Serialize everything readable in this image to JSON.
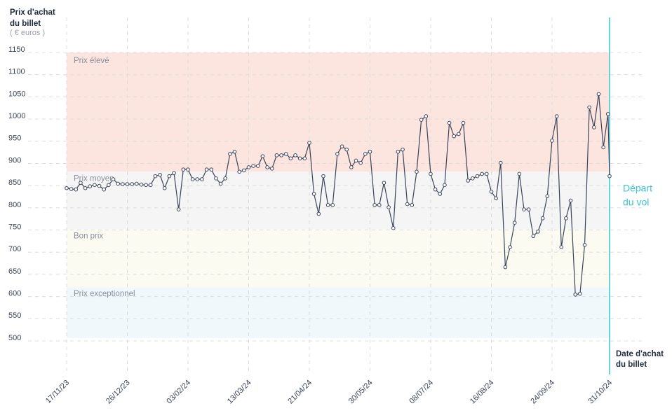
{
  "chart_data": {
    "type": "line",
    "y_label": [
      "Prix d'achat",
      "du billet"
    ],
    "y_unit": "( € euros )",
    "x_label": [
      "Date d'achat",
      "du billet"
    ],
    "ylim": [
      500,
      1150
    ],
    "yticks": [
      500,
      550,
      600,
      650,
      700,
      750,
      800,
      850,
      900,
      950,
      1000,
      1050,
      1100,
      1150
    ],
    "xlim": [
      "17/11/23",
      "31/10/24"
    ],
    "xticks": [
      "17/11/23",
      "26/12/23",
      "03/02/24",
      "13/03/24",
      "21/04/24",
      "30/05/24",
      "08/07/24",
      "16/08/24",
      "24/09/24",
      "31/10/24"
    ],
    "grid": true,
    "zones": [
      {
        "label": "Prix élevé",
        "range": [
          875,
          1150
        ],
        "color": "#fde5df"
      },
      {
        "label": "Prix moyen",
        "range": [
          745,
          875
        ],
        "color": "#f5f5f6"
      },
      {
        "label": "Bon prix",
        "range": [
          615,
          745
        ],
        "color": "#fbfbf1"
      },
      {
        "label": "Prix exceptionnel",
        "range": [
          500,
          615
        ],
        "color": "#f1f8fc"
      }
    ],
    "departure": {
      "label": [
        "Départ",
        "du vol"
      ],
      "x": "31/10/24",
      "color": "#3cc3d9"
    },
    "series": [
      {
        "color": "#3b4358",
        "x": [
          "17/11/23",
          "20/11/23",
          "23/11/23",
          "26/11/23",
          "29/11/23",
          "02/12/23",
          "05/12/23",
          "08/12/23",
          "11/12/23",
          "14/12/23",
          "17/12/23",
          "20/12/23",
          "23/12/23",
          "26/12/23",
          "29/12/23",
          "01/01/24",
          "04/01/24",
          "07/01/24",
          "10/01/24",
          "13/01/24",
          "16/01/24",
          "19/01/24",
          "22/01/24",
          "25/01/24",
          "28/01/24",
          "31/01/24",
          "03/02/24",
          "06/02/24",
          "09/02/24",
          "12/02/24",
          "15/02/24",
          "18/02/24",
          "21/02/24",
          "24/02/24",
          "27/02/24",
          "01/03/24",
          "04/03/24",
          "07/03/24",
          "10/03/24",
          "13/03/24",
          "16/03/24",
          "19/03/24",
          "22/03/24",
          "25/03/24",
          "28/03/24",
          "31/03/24",
          "03/04/24",
          "06/04/24",
          "09/04/24",
          "12/04/24",
          "15/04/24",
          "18/04/24",
          "21/04/24",
          "24/04/24",
          "27/04/24",
          "30/04/24",
          "03/05/24",
          "06/05/24",
          "09/05/24",
          "12/05/24",
          "15/05/24",
          "18/05/24",
          "21/05/24",
          "24/05/24",
          "27/05/24",
          "30/05/24",
          "02/06/24",
          "05/06/24",
          "08/06/24",
          "11/06/24",
          "14/06/24",
          "17/06/24",
          "20/06/24",
          "23/06/24",
          "26/06/24",
          "29/06/24",
          "02/07/24",
          "05/07/24",
          "08/07/24",
          "11/07/24",
          "14/07/24",
          "17/07/24",
          "20/07/24",
          "23/07/24",
          "26/07/24",
          "29/07/24",
          "01/08/24",
          "04/08/24",
          "07/08/24",
          "10/08/24",
          "13/08/24",
          "16/08/24",
          "19/08/24",
          "22/08/24",
          "25/08/24",
          "28/08/24",
          "31/08/24",
          "03/09/24",
          "06/09/24",
          "09/09/24",
          "12/09/24",
          "15/09/24",
          "18/09/24",
          "21/09/24",
          "24/09/24",
          "27/09/24",
          "30/09/24",
          "03/10/24",
          "06/10/24",
          "09/10/24",
          "12/10/24",
          "15/10/24",
          "18/10/24",
          "21/10/24",
          "24/10/24",
          "27/10/24",
          "30/10/24",
          "31/10/24"
        ],
        "values": [
          838,
          836,
          835,
          850,
          838,
          842,
          845,
          843,
          835,
          845,
          858,
          848,
          847,
          847,
          847,
          848,
          846,
          845,
          845,
          865,
          868,
          838,
          865,
          872,
          790,
          880,
          880,
          858,
          858,
          858,
          880,
          880,
          860,
          848,
          860,
          915,
          920,
          875,
          878,
          885,
          888,
          888,
          910,
          885,
          882,
          912,
          912,
          915,
          905,
          912,
          905,
          905,
          940,
          825,
          780,
          865,
          800,
          800,
          915,
          932,
          925,
          885,
          900,
          895,
          915,
          920,
          800,
          800,
          850,
          795,
          748,
          920,
          925,
          802,
          800,
          875,
          992,
          1000,
          870,
          835,
          825,
          845,
          985,
          955,
          960,
          985,
          855,
          860,
          865,
          870,
          870,
          830,
          815,
          895,
          660,
          705,
          760,
          870,
          790,
          790,
          730,
          740,
          770,
          820,
          945,
          1000,
          705,
          770,
          810,
          598,
          600,
          710,
          1020,
          975,
          1050,
          930,
          1005,
          865
        ]
      }
    ]
  }
}
